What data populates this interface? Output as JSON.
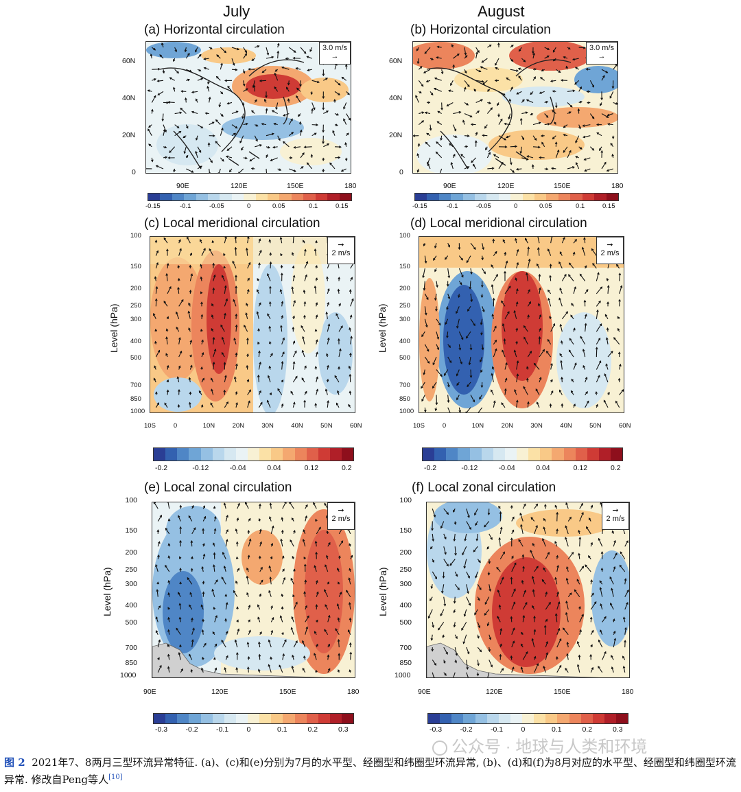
{
  "headers": {
    "left": "July",
    "right": "August"
  },
  "panels": {
    "a": {
      "title": "(a) Horizontal circulation",
      "ref": "3.0 m/s"
    },
    "b": {
      "title": "(b) Horizontal circulation",
      "ref": "3.0 m/s"
    },
    "c": {
      "title": "(c) Local meridional circulation",
      "ref": "2 m/s"
    },
    "d": {
      "title": "(d) Local meridional circulation",
      "ref": "2 m/s"
    },
    "e": {
      "title": "(e) Local zonal circulation",
      "ref": "2 m/s"
    },
    "f": {
      "title": "(f) Local zonal circulation",
      "ref": "2 m/s"
    }
  },
  "axes": {
    "lat_ticks": [
      "60N",
      "40N",
      "20N",
      "0"
    ],
    "lon_ticks": [
      "90E",
      "120E",
      "150E",
      "180"
    ],
    "level_ticks": [
      "100",
      "150",
      "200",
      "250",
      "300",
      "400",
      "500",
      "700",
      "850",
      "1000"
    ],
    "meridional_x_ticks": [
      "10S",
      "0",
      "10N",
      "20N",
      "30N",
      "40N",
      "50N",
      "60N"
    ],
    "zonal_x_ticks": [
      "90E",
      "120E",
      "150E",
      "180"
    ],
    "ylabel": "Level (hPa)"
  },
  "colorbars": {
    "horizontal": [
      "-0.15",
      "-0.1",
      "-0.05",
      "0",
      "0.05",
      "0.1",
      "0.15"
    ],
    "meridional": [
      "-0.2",
      "-0.12",
      "-0.04",
      "0.04",
      "0.12",
      "0.2"
    ],
    "zonal": [
      "-0.3",
      "-0.2",
      "-0.1",
      "0",
      "0.1",
      "0.2",
      "0.3"
    ]
  },
  "palette": [
    "#2a3e95",
    "#3361b0",
    "#4f86c6",
    "#6fa5d6",
    "#95c0e3",
    "#b9d7ec",
    "#d6e8f1",
    "#eaf3f5",
    "#f8f1d4",
    "#fbe1a6",
    "#f9c987",
    "#f4a870",
    "#ec855c",
    "#e0604a",
    "#cf3b35",
    "#b01f28",
    "#8e0f1c"
  ],
  "caption": {
    "label": "图 2",
    "text": "2021年7、8两月三型环流异常特征. (a)、(c)和(e)分别为7月的水平型、经圈型和纬圈型环流异常, (b)、(d)和(f)为8月对应的水平型、经圈型和纬圈型环流异常. 修改自Peng等人",
    "ref": "[10]"
  },
  "watermark": "公众号 · 地球与人类和环境"
}
